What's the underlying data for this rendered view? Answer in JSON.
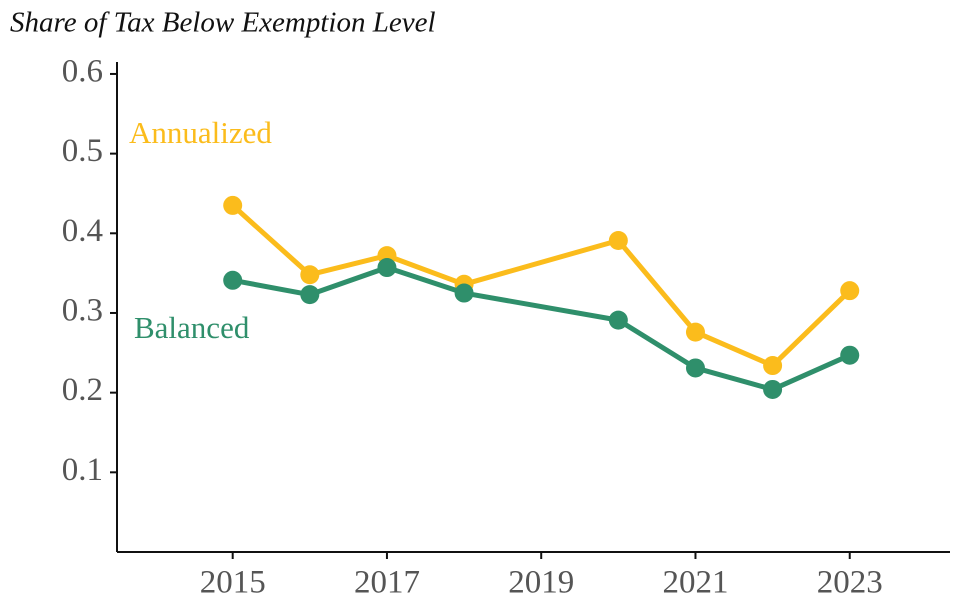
{
  "chart_data": {
    "type": "line",
    "title": "Share of Tax Below Exemption Level",
    "x": [
      2015,
      2016,
      2017,
      2018,
      2020,
      2021,
      2022,
      2023
    ],
    "series": [
      {
        "name": "Annualized",
        "color": "#fbbc1c",
        "values": [
          0.435,
          0.348,
          0.372,
          0.336,
          0.391,
          0.276,
          0.234,
          0.328
        ]
      },
      {
        "name": "Balanced",
        "color": "#2f8f6b",
        "values": [
          0.341,
          0.323,
          0.357,
          0.325,
          0.291,
          0.231,
          0.204,
          0.247
        ]
      }
    ],
    "xlim": [
      2013.5,
      2024.3
    ],
    "xticks": [
      2015,
      2017,
      2019,
      2021,
      2023
    ],
    "ylim": [
      0,
      0.615
    ],
    "yticks": [
      0.1,
      0.2,
      0.3,
      0.4,
      0.5,
      0.6
    ],
    "grid": false
  }
}
